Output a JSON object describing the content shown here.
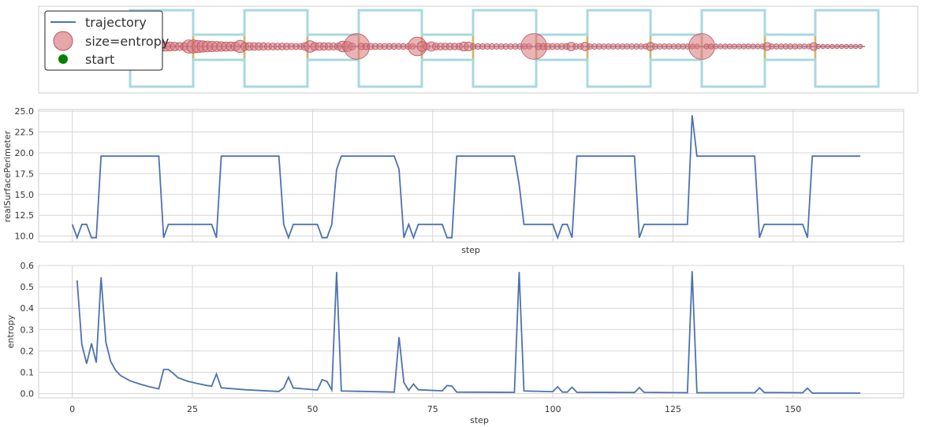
{
  "chart_data": [
    {
      "type": "scatter",
      "legend": {
        "placement": "top-left",
        "entries": [
          {
            "label": "trajectory",
            "kind": "line",
            "color": "#4c72b0"
          },
          {
            "label": "size=entropy",
            "kind": "bubble",
            "color": "#d9777c"
          },
          {
            "label": "start",
            "kind": "dot",
            "color": "#008000"
          }
        ]
      },
      "colors": {
        "track": "#a8d8e0",
        "connector": "#f5a623",
        "point": "#d9777c",
        "start": "#008000"
      }
    },
    {
      "type": "line",
      "xlabel": "step",
      "ylabel": "realSurfacePerimeter",
      "xlim": [
        -7,
        173
      ],
      "ylim": [
        9.3,
        25.2
      ],
      "x_ticks": [
        0,
        25,
        50,
        75,
        100,
        125,
        150
      ],
      "y_ticks": [
        10.0,
        12.5,
        15.0,
        17.5,
        20.0,
        22.5,
        25.0
      ],
      "grid": true,
      "series": [
        {
          "color": "#4c72b0",
          "x": [
            0,
            1,
            2,
            3,
            4,
            5,
            6,
            7,
            18,
            19,
            20,
            29,
            30,
            31,
            43,
            44,
            45,
            46,
            51,
            52,
            53,
            54,
            55,
            56,
            67,
            68,
            69,
            70,
            71,
            72,
            77,
            78,
            79,
            80,
            92,
            93,
            94,
            100,
            101,
            102,
            103,
            104,
            105,
            117,
            118,
            119,
            120,
            128,
            129,
            130,
            142,
            143,
            144,
            152,
            153,
            154,
            164
          ],
          "y": [
            11.4,
            9.8,
            11.4,
            11.4,
            9.8,
            9.8,
            19.6,
            19.6,
            19.6,
            9.8,
            11.4,
            11.4,
            9.8,
            19.6,
            19.6,
            11.4,
            9.8,
            11.4,
            11.4,
            9.8,
            9.8,
            11.4,
            18.0,
            19.6,
            19.6,
            18.0,
            9.8,
            11.4,
            9.8,
            11.4,
            11.4,
            9.8,
            9.8,
            19.6,
            19.6,
            16.2,
            11.4,
            11.4,
            9.8,
            11.4,
            11.4,
            9.8,
            19.6,
            19.6,
            9.8,
            11.4,
            11.4,
            11.4,
            24.5,
            19.6,
            19.6,
            9.8,
            11.4,
            11.4,
            9.8,
            19.6,
            19.6
          ]
        }
      ]
    },
    {
      "type": "line",
      "xlabel": "step",
      "ylabel": "entropy",
      "xlim": [
        -7,
        173
      ],
      "ylim": [
        -0.02,
        0.6
      ],
      "x_ticks": [
        0,
        25,
        50,
        75,
        100,
        125,
        150
      ],
      "y_ticks": [
        0.0,
        0.1,
        0.2,
        0.3,
        0.4,
        0.5,
        0.6
      ],
      "grid": true,
      "series": [
        {
          "color": "#4c72b0",
          "x": [
            1,
            2,
            3,
            4,
            5,
            6,
            7,
            8,
            9,
            10,
            12,
            14,
            16,
            18,
            19,
            20,
            21,
            22,
            24,
            26,
            28,
            29,
            30,
            31,
            36,
            43,
            44,
            45,
            46,
            51,
            52,
            53,
            54,
            55,
            56,
            67,
            68,
            69,
            70,
            71,
            72,
            77,
            78,
            79,
            80,
            92,
            93,
            94,
            100,
            101,
            102,
            103,
            104,
            105,
            117,
            118,
            119,
            128,
            129,
            130,
            142,
            143,
            144,
            152,
            153,
            154,
            164
          ],
          "y": [
            0.53,
            0.23,
            0.14,
            0.235,
            0.145,
            0.545,
            0.24,
            0.15,
            0.11,
            0.085,
            0.06,
            0.045,
            0.032,
            0.022,
            0.113,
            0.113,
            0.095,
            0.075,
            0.058,
            0.047,
            0.038,
            0.035,
            0.092,
            0.027,
            0.018,
            0.01,
            0.027,
            0.077,
            0.026,
            0.017,
            0.065,
            0.057,
            0.017,
            0.57,
            0.012,
            0.007,
            0.265,
            0.052,
            0.015,
            0.045,
            0.018,
            0.013,
            0.038,
            0.035,
            0.007,
            0.006,
            0.57,
            0.012,
            0.009,
            0.032,
            0.007,
            0.007,
            0.03,
            0.006,
            0.005,
            0.028,
            0.006,
            0.004,
            0.573,
            0.004,
            0.004,
            0.027,
            0.005,
            0.004,
            0.025,
            0.002,
            0.002
          ]
        }
      ]
    }
  ]
}
